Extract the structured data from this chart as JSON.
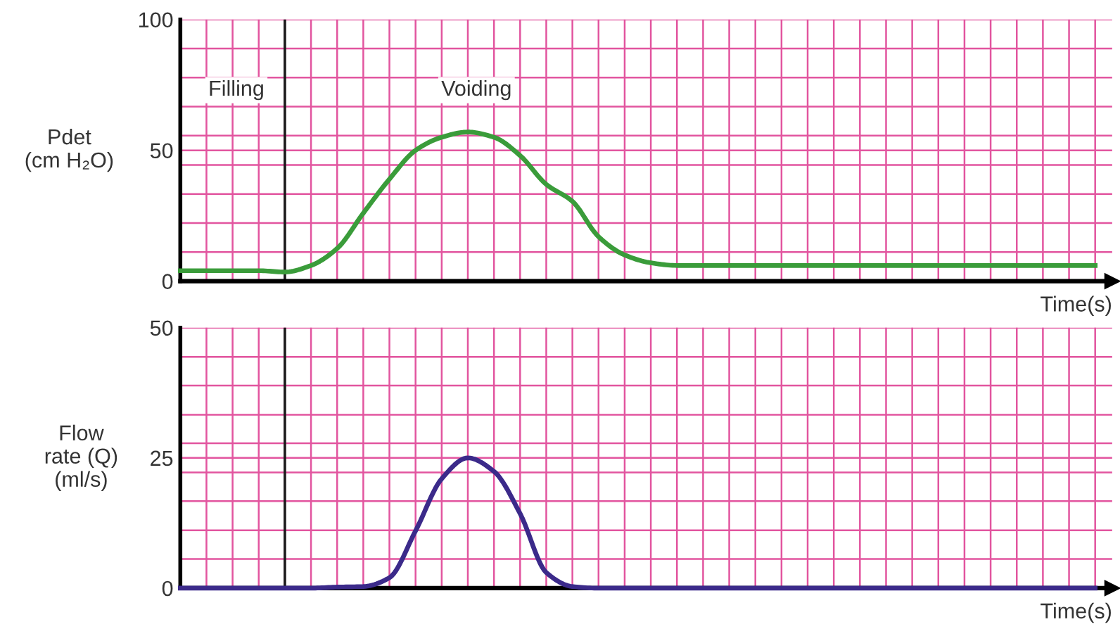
{
  "chart_data": [
    {
      "type": "line",
      "ylabel": "Pdet\n(cm H₂O)",
      "xlabel": "Time(s)",
      "annotations": [
        "Filling",
        "Voiding"
      ],
      "categories": [
        null,
        null,
        null,
        null,
        null,
        null,
        null,
        null,
        null,
        null,
        null,
        null,
        null,
        null,
        null,
        null,
        null,
        null,
        null,
        null,
        null,
        null,
        null,
        null,
        null,
        null,
        null,
        null,
        null,
        null,
        null,
        null,
        null,
        null,
        null,
        null
      ],
      "series": [
        {
          "color": "#3a9c3a",
          "values": [
            4,
            4,
            4,
            4,
            3.5,
            6,
            12.5,
            26,
            39,
            50,
            55,
            57,
            55,
            48,
            37,
            30.5,
            17,
            10,
            7,
            6,
            6,
            6,
            6,
            6,
            6,
            6,
            6,
            6,
            6,
            6,
            6,
            6,
            6,
            6,
            6,
            6
          ]
        }
      ],
      "ylim": [
        0,
        100
      ],
      "yticks": [
        0,
        {
          "value": 11.1,
          "label": null
        },
        {
          "value": 22.2,
          "label": null
        },
        {
          "value": 33.3,
          "label": null
        },
        {
          "value": 44.4,
          "label": null
        },
        50,
        {
          "value": 55.6,
          "label": null
        },
        {
          "value": 66.7,
          "label": null
        },
        {
          "value": 77.8,
          "label": null
        },
        {
          "value": 88.9,
          "label": null
        },
        100
      ],
      "grid": true,
      "tick_labels": "y",
      "line_style": "solid",
      "marker": "none"
    },
    {
      "type": "line",
      "ylabel": "Flow\nrate (Q)\n(ml/s)",
      "xlabel": "Time(s)",
      "categories": [
        null,
        null,
        null,
        null,
        null,
        null,
        null,
        null,
        null,
        null,
        null,
        null,
        null,
        null,
        null,
        null,
        null,
        null,
        null,
        null,
        null,
        null,
        null,
        null,
        null,
        null,
        null,
        null,
        null,
        null,
        null,
        null,
        null,
        null,
        null,
        null
      ],
      "series": [
        {
          "color": "#3b2a8a",
          "values": [
            0,
            0,
            0,
            0,
            0,
            0,
            0.2,
            0.3,
            2,
            11,
            21,
            25,
            22.4,
            14.3,
            3,
            0.3,
            0,
            0,
            0,
            0,
            0,
            0,
            0,
            0,
            0,
            0,
            0,
            0,
            0,
            0,
            0,
            0,
            0,
            0,
            0,
            0
          ]
        }
      ],
      "ylim": [
        0,
        50
      ],
      "yticks": [
        0,
        {
          "value": 5.6,
          "label": null
        },
        {
          "value": 11.1,
          "label": null
        },
        {
          "value": 16.7,
          "label": null
        },
        {
          "value": 22.2,
          "label": null
        },
        25,
        {
          "value": 27.8,
          "label": null
        },
        {
          "value": 33.3,
          "label": null
        },
        {
          "value": 38.9,
          "label": null
        },
        {
          "value": 44.4,
          "label": null
        },
        50
      ],
      "grid": true,
      "tick_labels": "y",
      "line_style": "solid",
      "marker": "none"
    }
  ]
}
